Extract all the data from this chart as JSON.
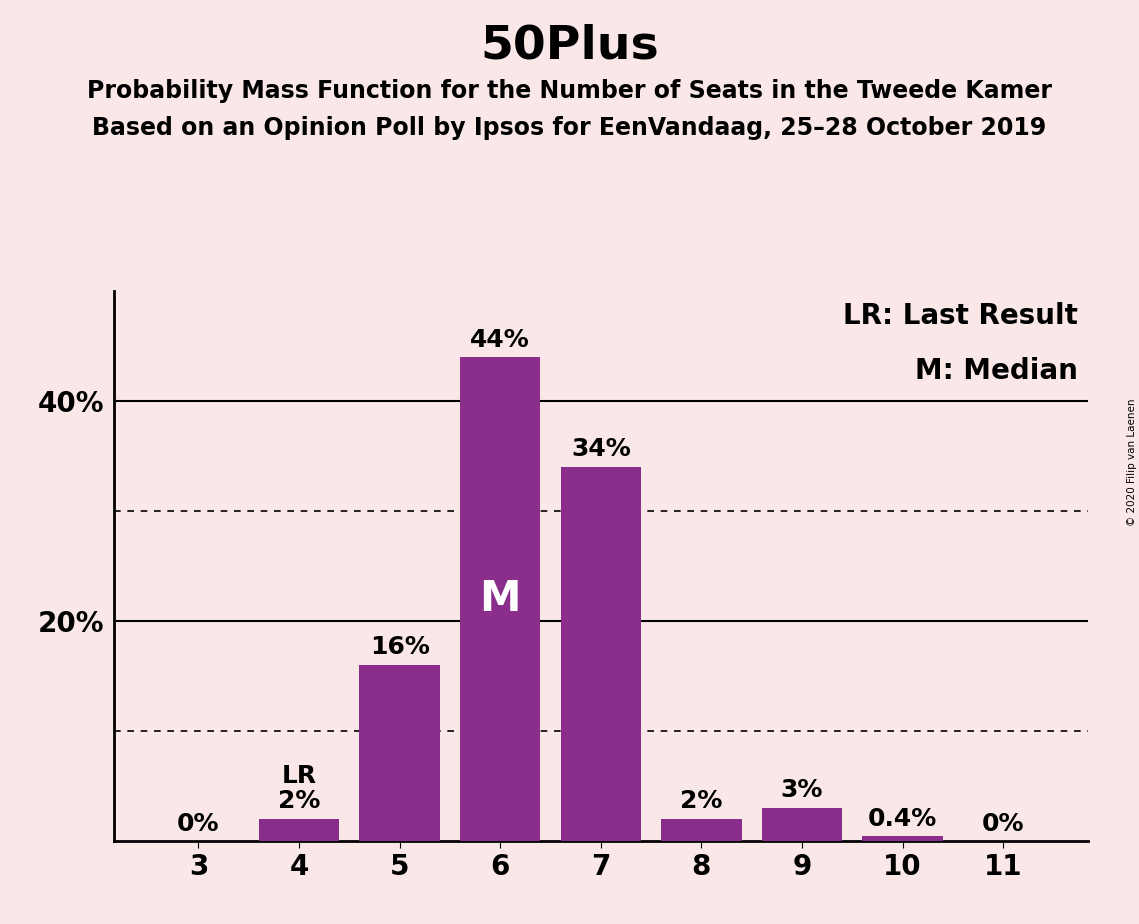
{
  "title": "50Plus",
  "subtitle1": "Probability Mass Function for the Number of Seats in the Tweede Kamer",
  "subtitle2": "Based on an Opinion Poll by Ipsos for EenVandaag, 25–28 October 2019",
  "copyright": "© 2020 Filip van Laenen",
  "categories": [
    3,
    4,
    5,
    6,
    7,
    8,
    9,
    10,
    11
  ],
  "values": [
    0.0,
    2.0,
    16.0,
    44.0,
    34.0,
    2.0,
    3.0,
    0.4,
    0.0
  ],
  "bar_labels": [
    "0%",
    "2%",
    "16%",
    "44%",
    "34%",
    "2%",
    "3%",
    "0.4%",
    "0%"
  ],
  "bar_color": "#8B2D8B",
  "background_color": "#FAE8E8",
  "median_bar": 6,
  "lr_bar": 4,
  "legend_lr": "LR: Last Result",
  "legend_m": "M: Median",
  "solid_lines": [
    20,
    40
  ],
  "dotted_lines": [
    10,
    30
  ],
  "ytick_solid": [
    20,
    40
  ],
  "ytick_labels": {
    "20": "20%",
    "40": "40%"
  },
  "ylim": [
    0,
    50
  ],
  "title_fontsize": 34,
  "subtitle_fontsize": 17,
  "label_fontsize": 18,
  "tick_fontsize": 20,
  "legend_fontsize": 20,
  "m_fontsize": 30
}
